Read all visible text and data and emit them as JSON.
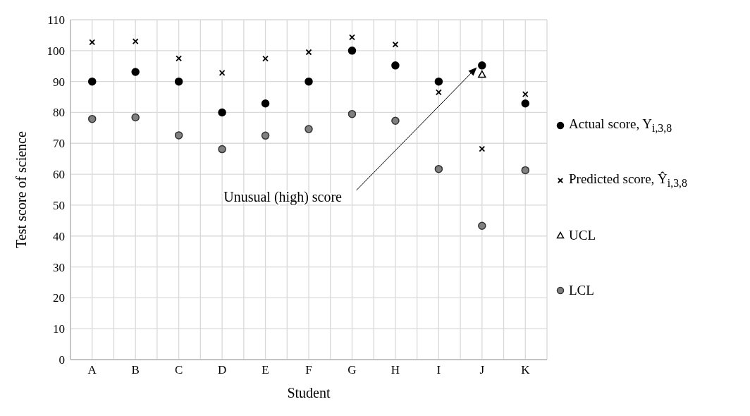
{
  "chart_data": {
    "type": "scatter",
    "xlabel": "Student",
    "ylabel": "Test score of science",
    "categories": [
      "A",
      "B",
      "C",
      "D",
      "E",
      "F",
      "G",
      "H",
      "I",
      "J",
      "K"
    ],
    "series": [
      {
        "name": "Actual score,  Y$_{i,3,8}$",
        "color": "#000000",
        "marker": "circle",
        "values": [
          90,
          93.1,
          90,
          80,
          82.9,
          90,
          100,
          95.2,
          90,
          95.2,
          82.9
        ]
      },
      {
        "name": "Predicted score,  Ŷ$_{i,3,8}$",
        "color": "#000000",
        "marker": "cross",
        "values": [
          102.7,
          103,
          97.5,
          92.8,
          97.4,
          99.5,
          104.3,
          102,
          86.5,
          68.2,
          85.9
        ]
      },
      {
        "name": "UCL",
        "color": "#000000",
        "marker": "triangle",
        "values": [
          null,
          null,
          null,
          null,
          null,
          null,
          null,
          null,
          null,
          92.3,
          null
        ]
      },
      {
        "name": "LCL",
        "color": "#808080",
        "marker": "circle",
        "values": [
          77.9,
          78.4,
          72.6,
          68.1,
          72.5,
          74.6,
          79.5,
          77.3,
          61.7,
          43.3,
          61.3
        ]
      }
    ],
    "ylim": [
      0,
      110
    ],
    "yticks": [
      0,
      10,
      20,
      30,
      40,
      50,
      60,
      70,
      80,
      90,
      100,
      110
    ],
    "grid": true,
    "legend": "right",
    "annotations": [
      "Unusual (high) score"
    ]
  }
}
